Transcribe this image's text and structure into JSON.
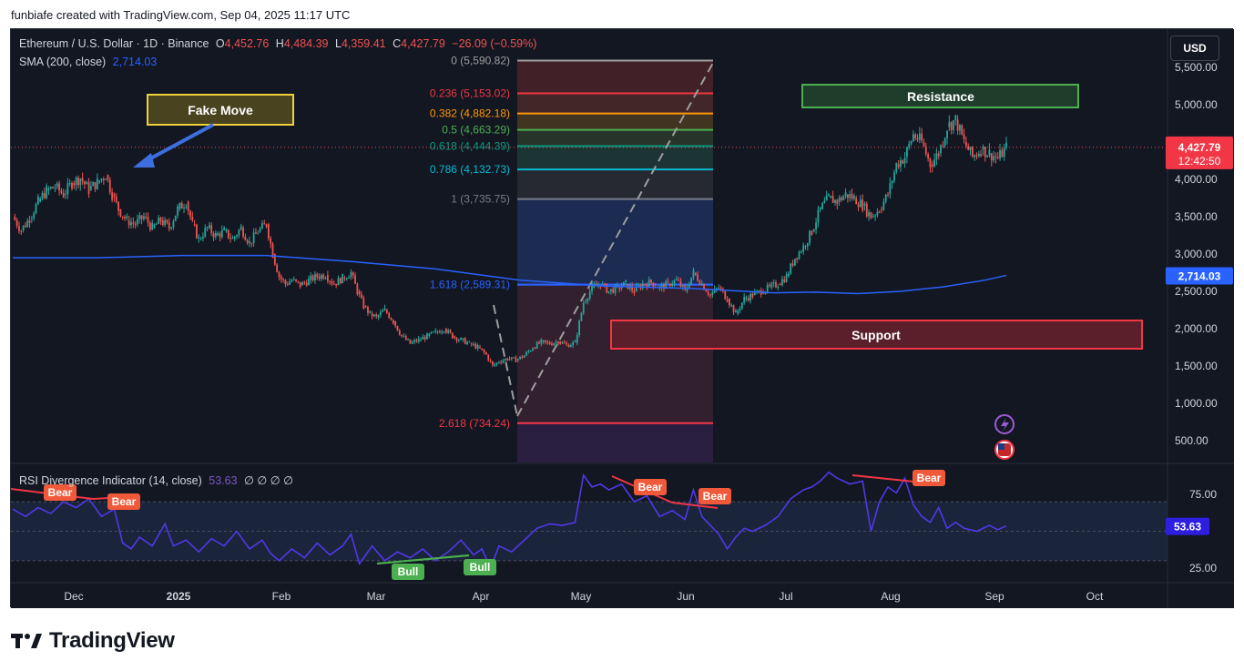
{
  "header": {
    "text": "funbiafe created with TradingView.com, Sep 04, 2025 11:17 UTC"
  },
  "legend": {
    "symbol": "Ethereum / U.S. Dollar · 1D · Binance",
    "o_label": "O",
    "o_value": "4,452.76",
    "h_label": "H",
    "h_value": "4,484.39",
    "l_label": "L",
    "l_value": "4,359.41",
    "c_label": "C",
    "c_value": "4,427.79",
    "change": "−26.09 (−0.59%)",
    "sma_label": "SMA (200, close)",
    "sma_value": "2,714.03",
    "rsi_label": "RSI Divergence Indicator (14, close)",
    "rsi_value": "53.63",
    "rsi_extra": "∅ ∅ ∅ ∅"
  },
  "currency_button": "USD",
  "footer": {
    "brand": "TradingView"
  },
  "colors": {
    "bg": "#131722",
    "up": "#26a69a",
    "down": "#ef5350",
    "sma": "#2962ff",
    "rsi": "#7e57c2"
  },
  "chart_data": [
    {
      "type": "candlestick",
      "title": "Ethereum / U.S. Dollar · 1D · Binance",
      "x_ticks": [
        "Dec",
        "2025",
        "Feb",
        "Mar",
        "Apr",
        "May",
        "Jun",
        "Jul",
        "Aug",
        "Sep",
        "Oct"
      ],
      "y_ticks": [
        "500.00",
        "1,000.00",
        "1,500.00",
        "2,000.00",
        "2,500.00",
        "3,000.00",
        "3,500.00",
        "4,000.00",
        "5,000.00",
        "5,500.00"
      ],
      "ylim": [
        300,
        5800
      ],
      "price_path": [
        [
          0,
          3500
        ],
        [
          4,
          3320
        ],
        [
          8,
          3480
        ],
        [
          12,
          3700
        ],
        [
          16,
          3850
        ],
        [
          20,
          3900
        ],
        [
          24,
          3800
        ],
        [
          28,
          3950
        ],
        [
          32,
          4020
        ],
        [
          36,
          3860
        ],
        [
          40,
          3960
        ],
        [
          44,
          4060
        ],
        [
          47,
          3800
        ],
        [
          50,
          3600
        ],
        [
          54,
          3450
        ],
        [
          58,
          3400
        ],
        [
          62,
          3500
        ],
        [
          66,
          3350
        ],
        [
          70,
          3450
        ],
        [
          74,
          3350
        ],
        [
          78,
          3600
        ],
        [
          82,
          3700
        ],
        [
          85,
          3400
        ],
        [
          88,
          3200
        ],
        [
          92,
          3350
        ],
        [
          96,
          3250
        ],
        [
          100,
          3300
        ],
        [
          104,
          3200
        ],
        [
          108,
          3350
        ],
        [
          112,
          3150
        ],
        [
          116,
          3300
        ],
        [
          120,
          3400
        ],
        [
          123,
          3000
        ],
        [
          126,
          2700
        ],
        [
          129,
          2600
        ],
        [
          132,
          2650
        ],
        [
          136,
          2580
        ],
        [
          140,
          2650
        ],
        [
          144,
          2700
        ],
        [
          148,
          2720
        ],
        [
          152,
          2600
        ],
        [
          156,
          2680
        ],
        [
          160,
          2750
        ],
        [
          163,
          2500
        ],
        [
          166,
          2300
        ],
        [
          169,
          2200
        ],
        [
          172,
          2150
        ],
        [
          176,
          2250
        ],
        [
          180,
          2100
        ],
        [
          184,
          1900
        ],
        [
          188,
          1800
        ],
        [
          192,
          1850
        ],
        [
          196,
          1900
        ],
        [
          200,
          1950
        ],
        [
          204,
          2000
        ],
        [
          208,
          1900
        ],
        [
          212,
          1850
        ],
        [
          216,
          1800
        ],
        [
          220,
          1750
        ],
        [
          224,
          1650
        ],
        [
          227,
          1500
        ],
        [
          230,
          1560
        ],
        [
          234,
          1600
        ],
        [
          238,
          1580
        ],
        [
          242,
          1640
        ],
        [
          246,
          1750
        ],
        [
          250,
          1820
        ],
        [
          254,
          1800
        ],
        [
          258,
          1830
        ],
        [
          262,
          1780
        ],
        [
          266,
          1810
        ],
        [
          270,
          2350
        ],
        [
          274,
          2550
        ],
        [
          278,
          2600
        ],
        [
          282,
          2500
        ],
        [
          286,
          2550
        ],
        [
          290,
          2600
        ],
        [
          294,
          2500
        ],
        [
          298,
          2600
        ],
        [
          302,
          2620
        ],
        [
          306,
          2550
        ],
        [
          310,
          2600
        ],
        [
          314,
          2650
        ],
        [
          318,
          2500
        ],
        [
          322,
          2750
        ],
        [
          326,
          2600
        ],
        [
          330,
          2450
        ],
        [
          334,
          2550
        ],
        [
          338,
          2400
        ],
        [
          342,
          2200
        ],
        [
          346,
          2400
        ],
        [
          350,
          2450
        ],
        [
          354,
          2500
        ],
        [
          358,
          2550
        ],
        [
          362,
          2600
        ],
        [
          366,
          2700
        ],
        [
          370,
          2950
        ],
        [
          374,
          3100
        ],
        [
          378,
          3300
        ],
        [
          382,
          3600
        ],
        [
          386,
          3750
        ],
        [
          390,
          3700
        ],
        [
          394,
          3800
        ],
        [
          398,
          3750
        ],
        [
          402,
          3650
        ],
        [
          406,
          3500
        ],
        [
          410,
          3600
        ],
        [
          414,
          3800
        ],
        [
          418,
          4200
        ],
        [
          422,
          4300
        ],
        [
          426,
          4600
        ],
        [
          430,
          4500
        ],
        [
          434,
          4200
        ],
        [
          438,
          4350
        ],
        [
          442,
          4700
        ],
        [
          446,
          4800
        ],
        [
          450,
          4500
        ],
        [
          454,
          4300
        ],
        [
          458,
          4400
        ],
        [
          462,
          4350
        ],
        [
          466,
          4280
        ],
        [
          470,
          4427
        ]
      ],
      "x_range": [
        0,
        470
      ],
      "sma_path": [
        [
          0,
          2950
        ],
        [
          40,
          2950
        ],
        [
          80,
          2980
        ],
        [
          120,
          2980
        ],
        [
          160,
          2900
        ],
        [
          200,
          2800
        ],
        [
          240,
          2650
        ],
        [
          280,
          2570
        ],
        [
          320,
          2540
        ],
        [
          360,
          2480
        ],
        [
          380,
          2490
        ],
        [
          400,
          2470
        ],
        [
          420,
          2500
        ],
        [
          440,
          2560
        ],
        [
          460,
          2650
        ],
        [
          470,
          2714
        ]
      ],
      "sma_last": "2,714.03",
      "last_price": "4,427.79",
      "countdown": "12:42:50",
      "fibonacci": [
        {
          "label": "0 (5,590.82)",
          "price": 5590.82,
          "color": "#9e9e9e"
        },
        {
          "label": "0.236 (5,153.02)",
          "price": 5153.02,
          "color": "#f23645"
        },
        {
          "label": "0.382 (4,882.18)",
          "price": 4882.18,
          "color": "#ff9800"
        },
        {
          "label": "0.5 (4,663.29)",
          "price": 4663.29,
          "color": "#4caf50"
        },
        {
          "label": "0.618 (4,444.39)",
          "price": 4444.39,
          "color": "#089981"
        },
        {
          "label": "0.786 (4,132.73)",
          "price": 4132.73,
          "color": "#00bcd4"
        },
        {
          "label": "1 (3,735.75)",
          "price": 3735.75,
          "color": "#787b86"
        },
        {
          "label": "1.618 (2,589.31)",
          "price": 2589.31,
          "color": "#2962ff"
        },
        {
          "label": "2.618 (734.24)",
          "price": 734.24,
          "color": "#f23645"
        }
      ],
      "annotations": {
        "fake_move": "Fake Move",
        "resistance": "Resistance",
        "support": "Support"
      }
    },
    {
      "type": "line",
      "title": "RSI Divergence Indicator (14, close)",
      "y_ticks": [
        "25.00",
        "75.00"
      ],
      "ylim": [
        20,
        95
      ],
      "band": [
        30,
        70
      ],
      "last_value": "53.63",
      "rsi_path": [
        [
          0,
          65
        ],
        [
          6,
          60
        ],
        [
          12,
          66
        ],
        [
          18,
          62
        ],
        [
          24,
          70
        ],
        [
          30,
          66
        ],
        [
          36,
          72
        ],
        [
          42,
          60
        ],
        [
          48,
          65
        ],
        [
          52,
          42
        ],
        [
          56,
          38
        ],
        [
          60,
          46
        ],
        [
          66,
          40
        ],
        [
          72,
          55
        ],
        [
          76,
          40
        ],
        [
          82,
          44
        ],
        [
          88,
          36
        ],
        [
          94,
          45
        ],
        [
          100,
          40
        ],
        [
          106,
          50
        ],
        [
          112,
          38
        ],
        [
          118,
          44
        ],
        [
          122,
          35
        ],
        [
          126,
          30
        ],
        [
          132,
          38
        ],
        [
          138,
          32
        ],
        [
          144,
          42
        ],
        [
          150,
          34
        ],
        [
          156,
          40
        ],
        [
          160,
          48
        ],
        [
          164,
          28
        ],
        [
          170,
          40
        ],
        [
          176,
          30
        ],
        [
          182,
          36
        ],
        [
          188,
          32
        ],
        [
          194,
          38
        ],
        [
          200,
          30
        ],
        [
          206,
          36
        ],
        [
          212,
          44
        ],
        [
          218,
          34
        ],
        [
          222,
          38
        ],
        [
          226,
          25
        ],
        [
          230,
          40
        ],
        [
          236,
          36
        ],
        [
          242,
          44
        ],
        [
          248,
          52
        ],
        [
          254,
          55
        ],
        [
          260,
          54
        ],
        [
          266,
          56
        ],
        [
          270,
          88
        ],
        [
          274,
          80
        ],
        [
          278,
          82
        ],
        [
          282,
          78
        ],
        [
          288,
          82
        ],
        [
          294,
          70
        ],
        [
          300,
          74
        ],
        [
          306,
          60
        ],
        [
          312,
          64
        ],
        [
          318,
          58
        ],
        [
          322,
          78
        ],
        [
          326,
          60
        ],
        [
          330,
          54
        ],
        [
          334,
          48
        ],
        [
          338,
          38
        ],
        [
          342,
          46
        ],
        [
          346,
          52
        ],
        [
          350,
          50
        ],
        [
          356,
          54
        ],
        [
          362,
          60
        ],
        [
          368,
          72
        ],
        [
          374,
          78
        ],
        [
          378,
          80
        ],
        [
          382,
          84
        ],
        [
          386,
          90
        ],
        [
          390,
          86
        ],
        [
          396,
          82
        ],
        [
          402,
          84
        ],
        [
          406,
          50
        ],
        [
          410,
          70
        ],
        [
          414,
          80
        ],
        [
          418,
          76
        ],
        [
          422,
          86
        ],
        [
          426,
          68
        ],
        [
          430,
          60
        ],
        [
          434,
          56
        ],
        [
          438,
          66
        ],
        [
          442,
          52
        ],
        [
          446,
          56
        ],
        [
          450,
          52
        ],
        [
          456,
          50
        ],
        [
          462,
          54
        ],
        [
          466,
          51
        ],
        [
          470,
          53.63
        ]
      ],
      "divergences": [
        {
          "label": "Bear",
          "kind": "bear"
        },
        {
          "label": "Bear",
          "kind": "bear"
        },
        {
          "label": "Bull",
          "kind": "bull"
        },
        {
          "label": "Bull",
          "kind": "bull"
        },
        {
          "label": "Bear",
          "kind": "bear"
        },
        {
          "label": "Bear",
          "kind": "bear"
        },
        {
          "label": "Bear",
          "kind": "bear"
        }
      ]
    }
  ]
}
